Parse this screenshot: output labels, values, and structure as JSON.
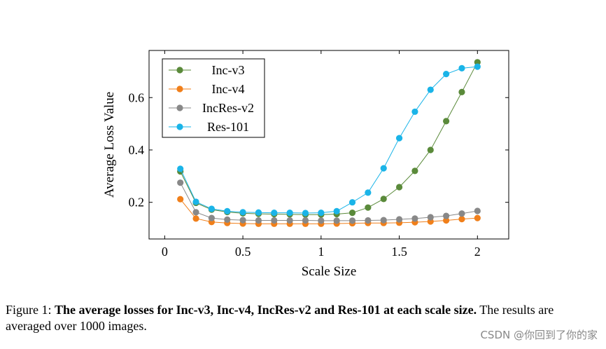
{
  "chart_data": {
    "type": "line",
    "xlabel": "Scale Size",
    "ylabel": "Average Loss Value",
    "xlim": [
      -0.1,
      2.2
    ],
    "ylim": [
      0.06,
      0.78
    ],
    "x_ticks": [
      0,
      0.5,
      1,
      1.5,
      2
    ],
    "x_tick_labels": [
      "0",
      "0.5",
      "1",
      "1.5",
      "2"
    ],
    "y_ticks": [
      0.2,
      0.4,
      0.6
    ],
    "y_tick_labels": [
      "0.2",
      "0.4",
      "0.6"
    ],
    "legend_position": "top-left",
    "x": [
      0.1,
      0.2,
      0.3,
      0.4,
      0.5,
      0.6,
      0.7,
      0.8,
      0.9,
      1.0,
      1.1,
      1.2,
      1.3,
      1.4,
      1.5,
      1.6,
      1.7,
      1.8,
      1.9,
      2.0
    ],
    "series": [
      {
        "name": "Inc-v3",
        "color": "#5a8a3a",
        "values": [
          0.318,
          0.198,
          0.172,
          0.163,
          0.158,
          0.156,
          0.155,
          0.154,
          0.153,
          0.153,
          0.155,
          0.16,
          0.18,
          0.213,
          0.258,
          0.32,
          0.4,
          0.51,
          0.621,
          0.735
        ]
      },
      {
        "name": "Inc-v4",
        "color": "#f07f1a",
        "values": [
          0.212,
          0.138,
          0.125,
          0.121,
          0.119,
          0.118,
          0.118,
          0.118,
          0.118,
          0.118,
          0.119,
          0.12,
          0.121,
          0.121,
          0.122,
          0.124,
          0.127,
          0.131,
          0.136,
          0.14
        ]
      },
      {
        "name": "IncRes-v2",
        "color": "#888888",
        "values": [
          0.275,
          0.162,
          0.14,
          0.134,
          0.132,
          0.131,
          0.131,
          0.131,
          0.131,
          0.13,
          0.13,
          0.13,
          0.131,
          0.132,
          0.135,
          0.138,
          0.143,
          0.148,
          0.157,
          0.167
        ]
      },
      {
        "name": "Res-101",
        "color": "#1ab4e8",
        "values": [
          0.328,
          0.202,
          0.175,
          0.166,
          0.162,
          0.161,
          0.16,
          0.16,
          0.159,
          0.16,
          0.166,
          0.2,
          0.237,
          0.33,
          0.445,
          0.546,
          0.63,
          0.69,
          0.712,
          0.718
        ]
      }
    ]
  },
  "caption": {
    "prefix": "Figure 1: ",
    "bold": "The average losses for Inc-v3, Inc-v4, IncRes-v2 and Res-101 at each scale size.",
    "rest": " The results are averaged over 1000 images."
  },
  "watermark": "CSDN @你回到了你的家"
}
